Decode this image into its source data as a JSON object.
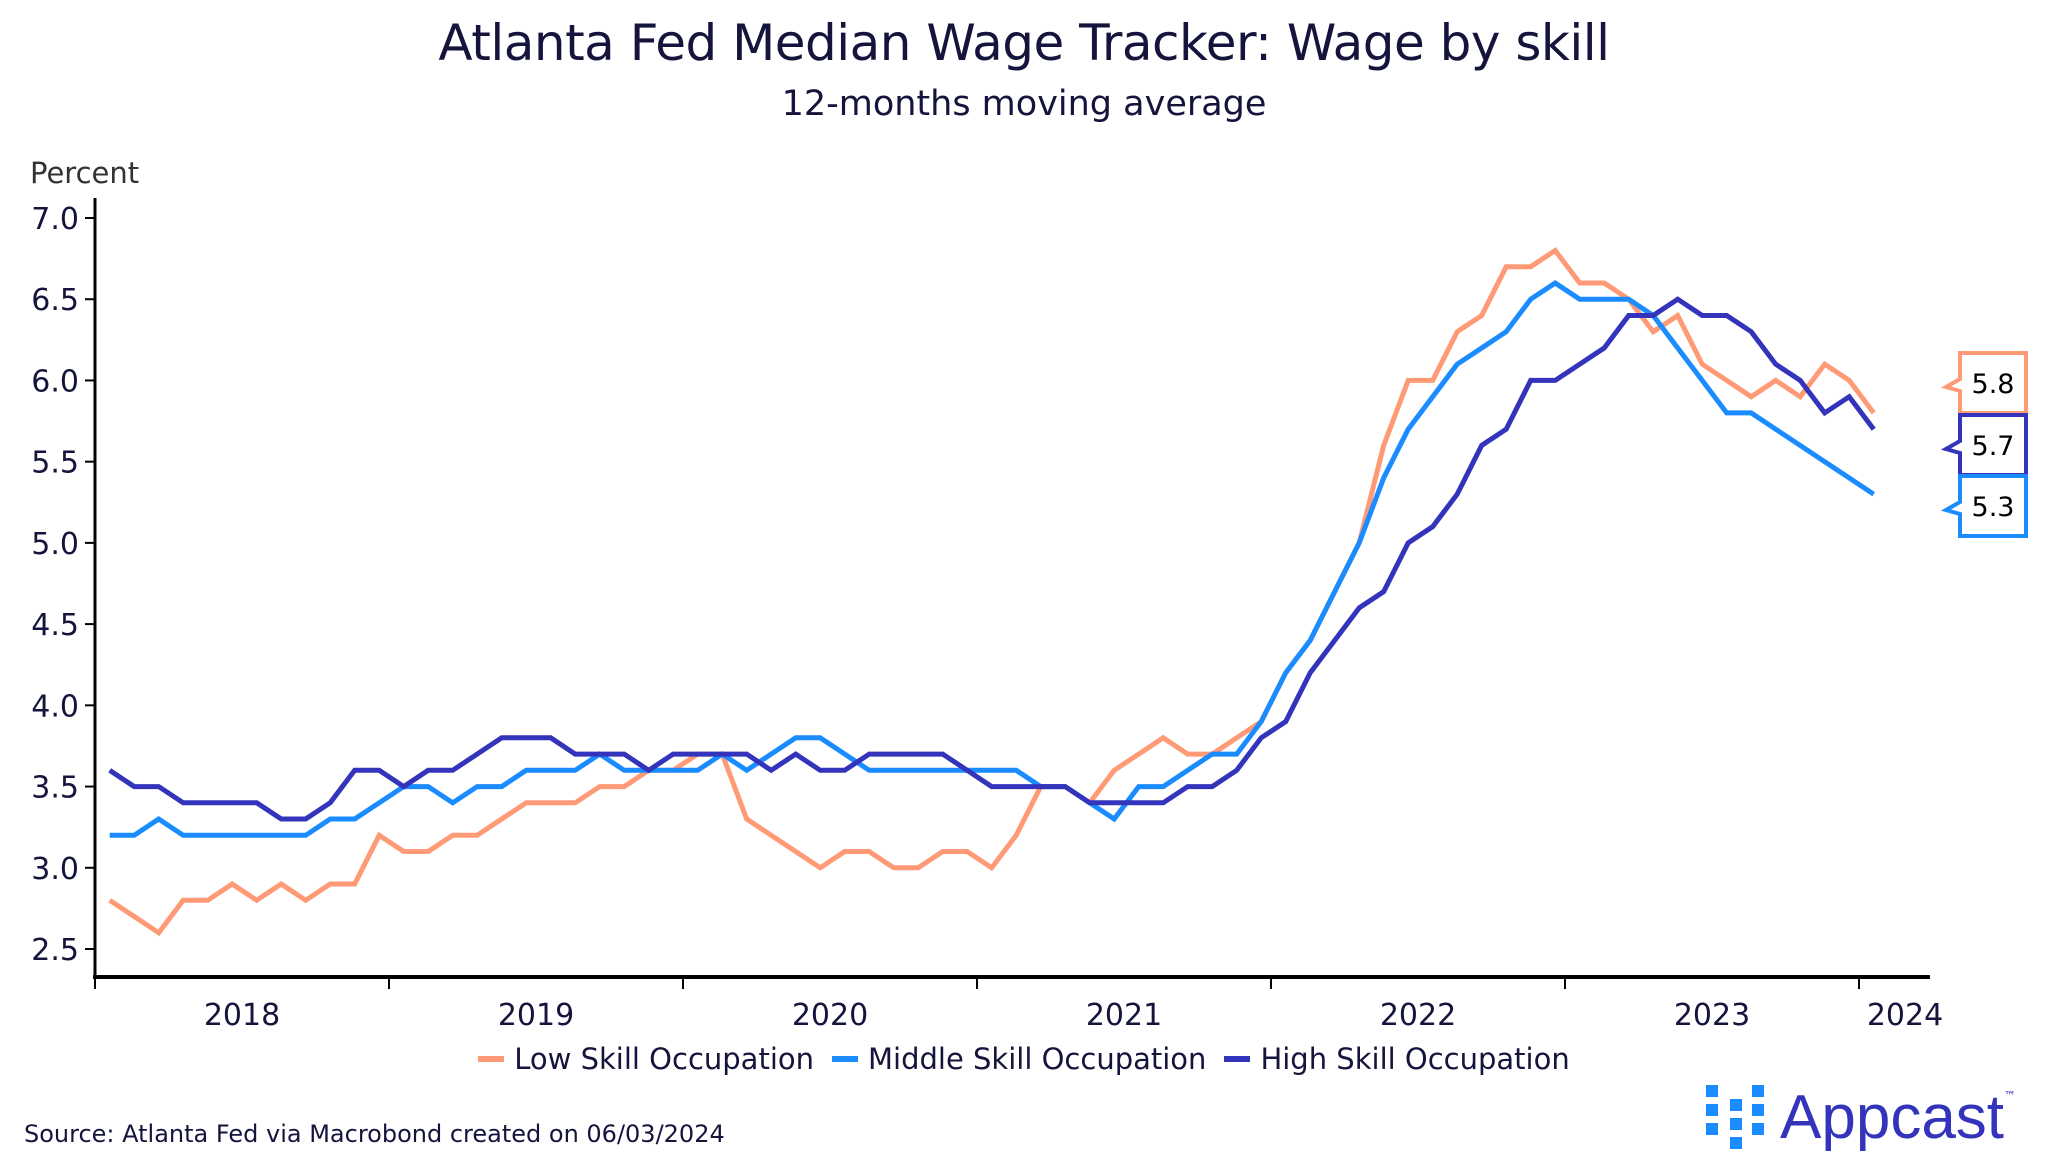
{
  "chart_data": {
    "type": "line",
    "title": "Atlanta Fed Median Wage Tracker: Wage by skill",
    "subtitle": "12-months moving average",
    "ylabel": "Percent",
    "xlabel": "",
    "ylim": [
      2.5,
      7.0
    ],
    "yticks": [
      "2.5",
      "3.0",
      "3.5",
      "4.0",
      "4.5",
      "5.0",
      "5.5",
      "6.0",
      "6.5",
      "7.0"
    ],
    "xticks": [
      "2018",
      "2019",
      "2020",
      "2021",
      "2022",
      "2023",
      "2024"
    ],
    "x_start": "2018-01",
    "x_frequency": "monthly",
    "grid": false,
    "legend_placement": "bottom",
    "series": [
      {
        "name": "Low Skill Occupation",
        "color": "#FF9A76",
        "last_label": "5.8",
        "values": [
          2.8,
          2.7,
          2.6,
          2.8,
          2.8,
          2.9,
          2.8,
          2.9,
          2.8,
          2.9,
          2.9,
          3.2,
          3.1,
          3.1,
          3.2,
          3.2,
          3.3,
          3.4,
          3.4,
          3.4,
          3.5,
          3.5,
          3.6,
          3.6,
          3.7,
          3.7,
          3.3,
          3.2,
          3.1,
          3.0,
          3.1,
          3.1,
          3.0,
          3.0,
          3.1,
          3.1,
          3.0,
          3.2,
          3.5,
          3.5,
          3.4,
          3.6,
          3.7,
          3.8,
          3.7,
          3.7,
          3.8,
          3.9,
          4.2,
          4.4,
          4.7,
          5.0,
          5.6,
          6.0,
          6.0,
          6.3,
          6.4,
          6.7,
          6.7,
          6.8,
          6.6,
          6.6,
          6.5,
          6.3,
          6.4,
          6.1,
          6.0,
          5.9,
          6.0,
          5.9,
          6.1,
          6.0,
          5.8
        ]
      },
      {
        "name": "Middle Skill Occupation",
        "color": "#1A8CFF",
        "last_label": "5.3",
        "values": [
          3.2,
          3.2,
          3.3,
          3.2,
          3.2,
          3.2,
          3.2,
          3.2,
          3.2,
          3.3,
          3.3,
          3.4,
          3.5,
          3.5,
          3.4,
          3.5,
          3.5,
          3.6,
          3.6,
          3.6,
          3.7,
          3.6,
          3.6,
          3.6,
          3.6,
          3.7,
          3.6,
          3.7,
          3.8,
          3.8,
          3.7,
          3.6,
          3.6,
          3.6,
          3.6,
          3.6,
          3.6,
          3.6,
          3.5,
          3.5,
          3.4,
          3.3,
          3.5,
          3.5,
          3.6,
          3.7,
          3.7,
          3.9,
          4.2,
          4.4,
          4.7,
          5.0,
          5.4,
          5.7,
          5.9,
          6.1,
          6.2,
          6.3,
          6.5,
          6.6,
          6.5,
          6.5,
          6.5,
          6.4,
          6.2,
          6.0,
          5.8,
          5.8,
          5.7,
          5.6,
          5.5,
          5.4,
          5.3
        ]
      },
      {
        "name": "High Skill Occupation",
        "color": "#3333BB",
        "last_label": "5.7",
        "values": [
          3.6,
          3.5,
          3.5,
          3.4,
          3.4,
          3.4,
          3.4,
          3.3,
          3.3,
          3.4,
          3.6,
          3.6,
          3.5,
          3.6,
          3.6,
          3.7,
          3.8,
          3.8,
          3.8,
          3.7,
          3.7,
          3.7,
          3.6,
          3.7,
          3.7,
          3.7,
          3.7,
          3.6,
          3.7,
          3.6,
          3.6,
          3.7,
          3.7,
          3.7,
          3.7,
          3.6,
          3.5,
          3.5,
          3.5,
          3.5,
          3.4,
          3.4,
          3.4,
          3.4,
          3.5,
          3.5,
          3.6,
          3.8,
          3.9,
          4.2,
          4.4,
          4.6,
          4.7,
          5.0,
          5.1,
          5.3,
          5.6,
          5.7,
          6.0,
          6.0,
          6.1,
          6.2,
          6.4,
          6.4,
          6.5,
          6.4,
          6.4,
          6.3,
          6.1,
          6.0,
          5.8,
          5.9,
          5.7
        ]
      }
    ]
  },
  "source": "Source: Atlanta Fed via Macrobond created on 06/03/2024",
  "logo": {
    "text": "Appcast",
    "trademark": "™",
    "icon": "dot-grid-icon",
    "icon_color": "#1A8CFF",
    "text_color": "#3333BB"
  }
}
